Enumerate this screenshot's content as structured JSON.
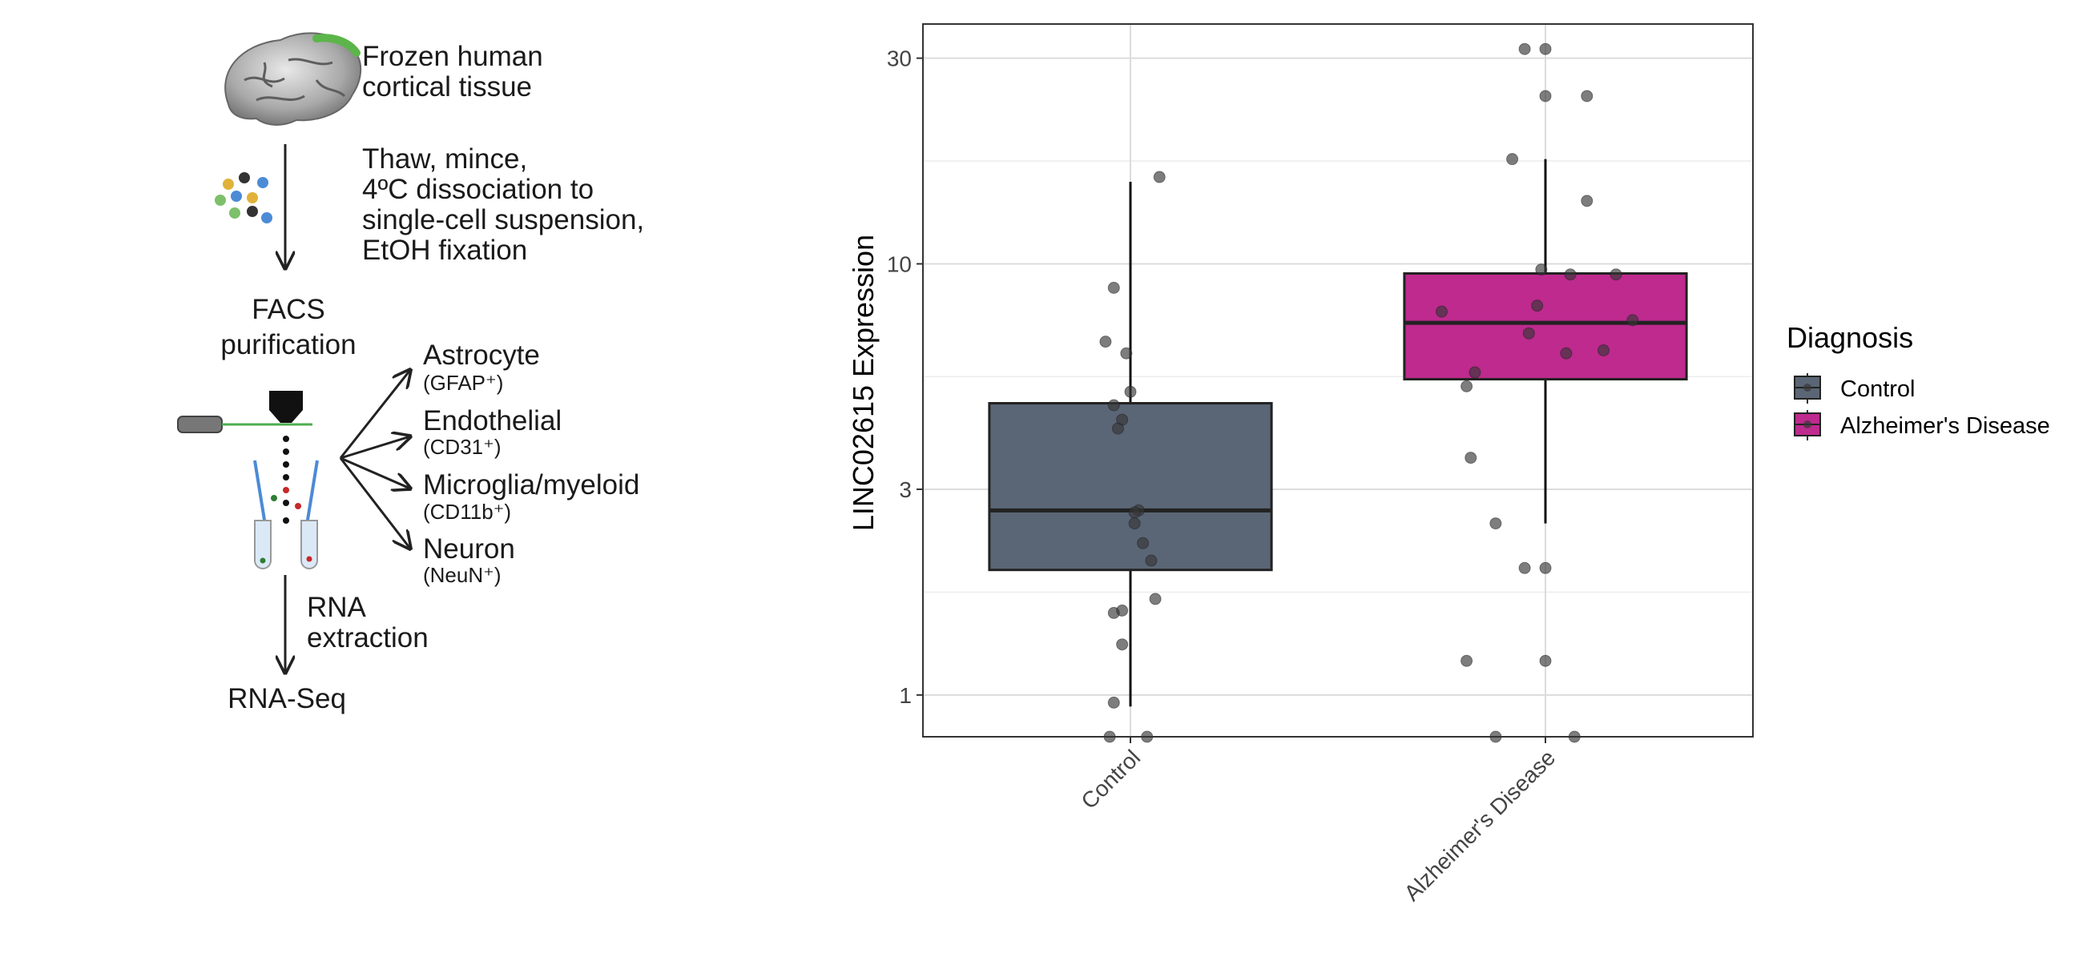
{
  "workflow": {
    "steps": {
      "tissue": [
        "Frozen human",
        "cortical tissue"
      ],
      "dissociation": [
        "Thaw, mince,",
        "4ºC dissociation to",
        "single-cell suspension,",
        "EtOH fixation"
      ],
      "facs": [
        "FACS",
        "purification"
      ],
      "rna_extraction": [
        "RNA",
        "extraction"
      ],
      "rnaseq": "RNA-Seq"
    },
    "cell_types": [
      {
        "name": "Astrocyte",
        "marker": "(GFAP⁺)"
      },
      {
        "name": "Endothelial",
        "marker": "(CD31⁺)"
      },
      {
        "name": "Microglia/myeloid",
        "marker": "(CD11b⁺)"
      },
      {
        "name": "Neuron",
        "marker": "(NeuN⁺)"
      }
    ]
  },
  "chart_data": {
    "type": "boxplot",
    "ylabel": "LINC02615 Expression",
    "y_scale": "log10",
    "ylim": [
      0.8,
      36
    ],
    "y_ticks": [
      1,
      3,
      10,
      30
    ],
    "y_tick_labels": [
      "1",
      "3",
      "10",
      "30"
    ],
    "categories": [
      "Control",
      "Alzheimer's Disease"
    ],
    "legend": {
      "title": "Diagnosis",
      "position": "right"
    },
    "grid": true,
    "series": [
      {
        "name": "Control",
        "color": "#5a6675",
        "box": {
          "q1": 1.95,
          "median": 2.68,
          "q3": 4.75,
          "whisker_low": 0.94,
          "whisker_high": 15.5
        },
        "points": [
          {
            "dx": 0.07,
            "y": 15.9
          },
          {
            "dx": -0.04,
            "y": 8.8
          },
          {
            "dx": -0.06,
            "y": 6.6
          },
          {
            "dx": -0.01,
            "y": 6.2
          },
          {
            "dx": 0.0,
            "y": 5.05
          },
          {
            "dx": -0.04,
            "y": 4.7
          },
          {
            "dx": -0.02,
            "y": 4.35
          },
          {
            "dx": -0.03,
            "y": 4.15
          },
          {
            "dx": 0.02,
            "y": 2.68
          },
          {
            "dx": 0.01,
            "y": 2.65
          },
          {
            "dx": 0.01,
            "y": 2.5
          },
          {
            "dx": 0.03,
            "y": 2.25
          },
          {
            "dx": 0.05,
            "y": 2.05
          },
          {
            "dx": 0.06,
            "y": 1.67
          },
          {
            "dx": -0.04,
            "y": 1.55
          },
          {
            "dx": -0.02,
            "y": 1.57
          },
          {
            "dx": -0.02,
            "y": 1.31
          },
          {
            "dx": -0.04,
            "y": 0.96
          },
          {
            "dx": -0.05,
            "y": 0.8
          },
          {
            "dx": 0.04,
            "y": 0.8
          }
        ]
      },
      {
        "name": "Alzheimer's Disease",
        "color": "#be2a8e",
        "box": {
          "q1": 5.4,
          "median": 7.3,
          "q3": 9.5,
          "whisker_low": 2.5,
          "whisker_high": 17.5
        },
        "points": [
          {
            "dx": -0.05,
            "y": 31.5
          },
          {
            "dx": 0.0,
            "y": 31.5
          },
          {
            "dx": 0.0,
            "y": 24.5
          },
          {
            "dx": 0.1,
            "y": 24.5
          },
          {
            "dx": -0.08,
            "y": 17.5
          },
          {
            "dx": 0.1,
            "y": 14.0
          },
          {
            "dx": -0.01,
            "y": 9.7
          },
          {
            "dx": 0.06,
            "y": 9.45
          },
          {
            "dx": 0.17,
            "y": 9.45
          },
          {
            "dx": -0.02,
            "y": 8.0
          },
          {
            "dx": -0.25,
            "y": 7.75
          },
          {
            "dx": 0.21,
            "y": 7.4
          },
          {
            "dx": -0.04,
            "y": 6.9
          },
          {
            "dx": 0.14,
            "y": 6.3
          },
          {
            "dx": 0.05,
            "y": 6.2
          },
          {
            "dx": -0.17,
            "y": 5.6
          },
          {
            "dx": -0.19,
            "y": 5.2
          },
          {
            "dx": -0.18,
            "y": 3.55
          },
          {
            "dx": -0.12,
            "y": 2.5
          },
          {
            "dx": -0.05,
            "y": 1.97
          },
          {
            "dx": 0.0,
            "y": 1.97
          },
          {
            "dx": -0.19,
            "y": 1.2
          },
          {
            "dx": 0.0,
            "y": 1.2
          },
          {
            "dx": -0.12,
            "y": 0.8
          },
          {
            "dx": 0.07,
            "y": 0.8
          }
        ]
      }
    ]
  }
}
